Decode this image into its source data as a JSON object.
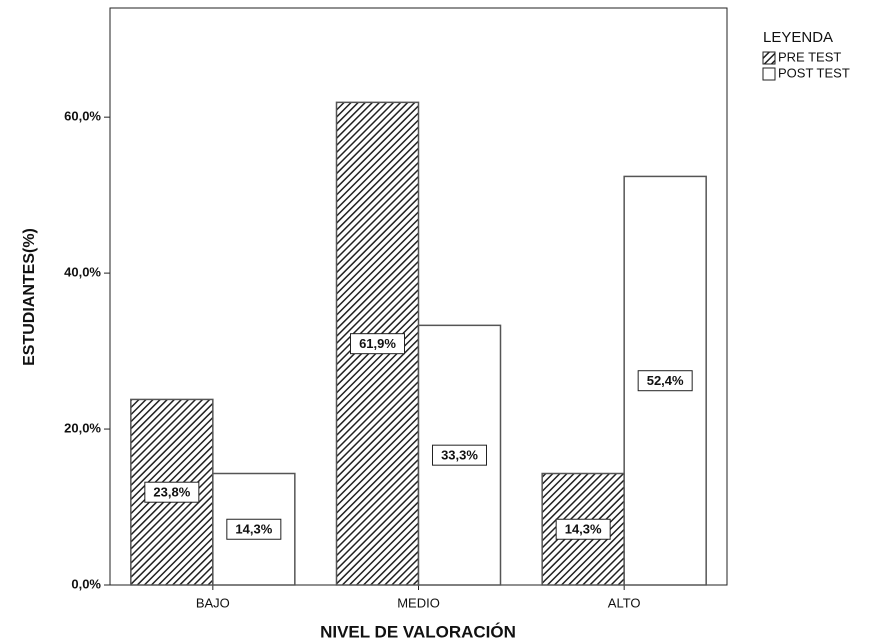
{
  "chart_data": {
    "type": "bar",
    "categories": [
      "BAJO",
      "MEDIO",
      "ALTO"
    ],
    "series": [
      {
        "name": "PRE TEST",
        "color": "#222222",
        "hatch": true,
        "values": [
          23.8,
          61.9,
          14.3
        ],
        "value_labels": [
          "23,8%",
          "61,9%",
          "14,3%"
        ]
      },
      {
        "name": "POST TEST",
        "color": "#ffffff",
        "hatch": false,
        "values": [
          14.3,
          33.3,
          52.4
        ],
        "value_labels": [
          "14,3%",
          "33,3%",
          "52,4%"
        ]
      }
    ],
    "xlabel": "NIVEL DE VALORACIÓN",
    "ylabel": "ESTUDIANTES(%)",
    "legend_title": "LEYENDA",
    "legend": "right",
    "ylim": [
      0,
      74
    ],
    "yticks": [
      {
        "value": 0,
        "label": "0,0%"
      },
      {
        "value": 20,
        "label": "20,0%"
      },
      {
        "value": 40,
        "label": "40,0%"
      },
      {
        "value": 60,
        "label": "60,0%"
      }
    ],
    "grid": false
  }
}
